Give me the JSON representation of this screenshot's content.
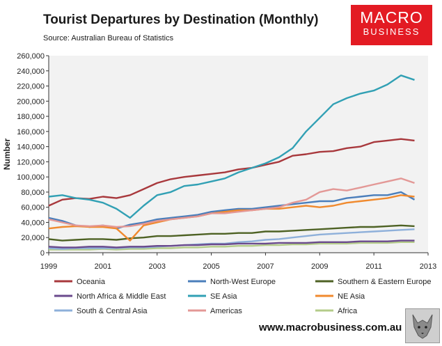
{
  "header": {
    "title": "Tourist Departures by Destination (Monthly)",
    "source": "Source: Australian Bureau of Statistics"
  },
  "logo": {
    "line1": "MACRO",
    "line2": "BUSINESS"
  },
  "footer": {
    "url": "www.macrobusiness.com.au"
  },
  "colors": {
    "oceania": "#a8383c",
    "north_west_europe": "#4a7ebb",
    "southern_eastern_europe": "#4e6224",
    "north_africa_middle_east": "#6a4a8c",
    "se_asia": "#31a0b4",
    "ne_asia": "#f08a2e",
    "south_central_asia": "#8eb0da",
    "americas": "#e39896",
    "africa": "#b4cc8a",
    "plot_bg": "#f2f2f2",
    "logo_bg": "#e31b23"
  },
  "chart_data": {
    "type": "line",
    "title": "Tourist Departures by Destination (Monthly)",
    "xlabel": "",
    "ylabel": "Number",
    "xlim": [
      1999,
      2013
    ],
    "ylim": [
      0,
      260000
    ],
    "x_ticks": [
      "1999",
      "2001",
      "2003",
      "2005",
      "2007",
      "2009",
      "2011",
      "2013"
    ],
    "y_ticks": [
      "0",
      "20,000",
      "40,000",
      "60,000",
      "80,000",
      "100,000",
      "120,000",
      "140,000",
      "160,000",
      "180,000",
      "200,000",
      "220,000",
      "240,000",
      "260,000"
    ],
    "grid": false,
    "legend_position": "bottom",
    "x": [
      1999,
      1999.5,
      2000,
      2000.5,
      2001,
      2001.5,
      2002,
      2002.5,
      2003,
      2003.5,
      2004,
      2004.5,
      2005,
      2005.5,
      2006,
      2006.5,
      2007,
      2007.5,
      2008,
      2008.5,
      2009,
      2009.5,
      2010,
      2010.5,
      2011,
      2011.5,
      2012,
      2012.5
    ],
    "series": [
      {
        "name": "Oceania",
        "color": "oceania",
        "values": [
          62000,
          70000,
          72000,
          71000,
          74000,
          72000,
          76000,
          84000,
          92000,
          97000,
          100000,
          102000,
          104000,
          106000,
          110000,
          112000,
          116000,
          120000,
          128000,
          130000,
          133000,
          134000,
          138000,
          140000,
          146000,
          148000,
          150000,
          148000
        ]
      },
      {
        "name": "North-West Europe",
        "color": "north_west_europe",
        "values": [
          46000,
          42000,
          36000,
          34000,
          36000,
          32000,
          37000,
          40000,
          44000,
          46000,
          48000,
          50000,
          54000,
          56000,
          58000,
          58000,
          60000,
          62000,
          64000,
          66000,
          68000,
          68000,
          72000,
          74000,
          76000,
          76000,
          80000,
          70000
        ]
      },
      {
        "name": "Southern & Eastern Europe",
        "color": "southern_eastern_europe",
        "values": [
          18000,
          16000,
          17000,
          18000,
          18000,
          17000,
          19000,
          20000,
          22000,
          22000,
          23000,
          24000,
          25000,
          25000,
          26000,
          26000,
          28000,
          28000,
          29000,
          30000,
          31000,
          32000,
          33000,
          34000,
          34000,
          35000,
          36000,
          35000
        ]
      },
      {
        "name": "North Africa & Middle East",
        "color": "north_africa_middle_east",
        "values": [
          8000,
          7000,
          7000,
          8000,
          8000,
          7000,
          8000,
          8000,
          9000,
          9000,
          10000,
          10000,
          11000,
          11000,
          12000,
          12000,
          12000,
          13000,
          13000,
          13000,
          14000,
          14000,
          14000,
          15000,
          15000,
          15000,
          16000,
          16000
        ]
      },
      {
        "name": "SE Asia",
        "color": "se_asia",
        "values": [
          74000,
          76000,
          72000,
          70000,
          66000,
          58000,
          46000,
          62000,
          76000,
          80000,
          88000,
          90000,
          94000,
          98000,
          106000,
          112000,
          118000,
          126000,
          138000,
          160000,
          178000,
          196000,
          204000,
          210000,
          214000,
          222000,
          234000,
          228000
        ]
      },
      {
        "name": "NE Asia",
        "color": "ne_asia",
        "values": [
          32000,
          34000,
          35000,
          34000,
          34000,
          32000,
          16000,
          36000,
          40000,
          44000,
          46000,
          48000,
          52000,
          54000,
          56000,
          56000,
          58000,
          58000,
          60000,
          62000,
          60000,
          62000,
          66000,
          68000,
          70000,
          72000,
          76000,
          74000
        ]
      },
      {
        "name": "South & Central Asia",
        "color": "south_central_asia",
        "values": [
          6000,
          5000,
          6000,
          6000,
          6000,
          6000,
          7000,
          7000,
          8000,
          9000,
          10000,
          11000,
          12000,
          12000,
          14000,
          15000,
          17000,
          18000,
          20000,
          22000,
          24000,
          25000,
          26000,
          27000,
          28000,
          29000,
          30000,
          31000
        ]
      },
      {
        "name": "Americas",
        "color": "americas",
        "values": [
          44000,
          40000,
          36000,
          35000,
          36000,
          34000,
          35000,
          38000,
          42000,
          44000,
          46000,
          48000,
          52000,
          52000,
          54000,
          56000,
          58000,
          60000,
          66000,
          70000,
          80000,
          84000,
          82000,
          86000,
          90000,
          94000,
          98000,
          92000
        ]
      },
      {
        "name": "Africa",
        "color": "africa",
        "values": [
          4000,
          4000,
          4000,
          4000,
          5000,
          4000,
          5000,
          5000,
          6000,
          6000,
          7000,
          7000,
          8000,
          8000,
          9000,
          9000,
          10000,
          10000,
          11000,
          11000,
          12000,
          12000,
          12000,
          13000,
          13000,
          13000,
          14000,
          14000
        ]
      }
    ]
  }
}
